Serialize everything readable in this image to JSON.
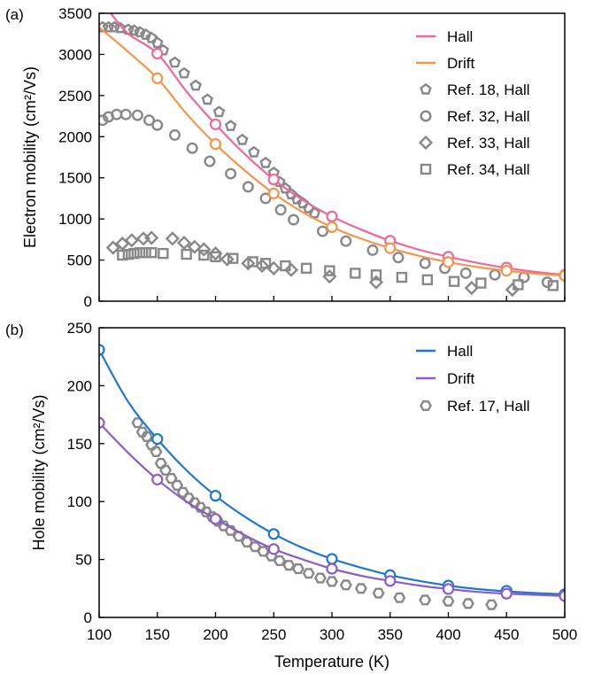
{
  "chart_data": [
    {
      "panel": "(a)",
      "type": "line",
      "ylabel": "Electron mobility (cm²/Vs)",
      "xlim": [
        100,
        500
      ],
      "ylim": [
        0,
        3500
      ],
      "xticks": [
        100,
        150,
        200,
        250,
        300,
        350,
        400,
        450,
        500
      ],
      "yticks": [
        0,
        500,
        1000,
        1500,
        2000,
        2500,
        3000,
        3500
      ],
      "grid": false,
      "legend_position": "top-right",
      "series": [
        {
          "name": "Hall",
          "kind": "curve+circles",
          "color": "#f0679a",
          "curve": [
            [
              110,
              3500
            ],
            [
              125,
              3250
            ],
            [
              150,
              3010
            ],
            [
              175,
              2550
            ],
            [
              200,
              2150
            ],
            [
              225,
              1790
            ],
            [
              250,
              1480
            ],
            [
              275,
              1230
            ],
            [
              300,
              1030
            ],
            [
              325,
              870
            ],
            [
              350,
              735
            ],
            [
              375,
              625
            ],
            [
              400,
              540
            ],
            [
              425,
              465
            ],
            [
              450,
              405
            ],
            [
              475,
              355
            ],
            [
              500,
              320
            ]
          ],
          "points": [
            [
              150,
              3010
            ],
            [
              200,
              2150
            ],
            [
              250,
              1480
            ],
            [
              300,
              1030
            ],
            [
              350,
              735
            ],
            [
              400,
              540
            ],
            [
              450,
              410
            ],
            [
              500,
              320
            ]
          ]
        },
        {
          "name": "Drift",
          "kind": "curve+circles",
          "color": "#f5954a",
          "curve": [
            [
              100,
              3330
            ],
            [
              125,
              3030
            ],
            [
              150,
              2710
            ],
            [
              175,
              2280
            ],
            [
              200,
              1910
            ],
            [
              225,
              1590
            ],
            [
              250,
              1310
            ],
            [
              275,
              1080
            ],
            [
              300,
              900
            ],
            [
              325,
              760
            ],
            [
              350,
              645
            ],
            [
              375,
              550
            ],
            [
              400,
              475
            ],
            [
              425,
              415
            ],
            [
              450,
              370
            ],
            [
              475,
              335
            ],
            [
              500,
              310
            ]
          ],
          "points": [
            [
              150,
              2710
            ],
            [
              200,
              1910
            ],
            [
              250,
              1310
            ],
            [
              300,
              900
            ],
            [
              350,
              645
            ],
            [
              400,
              475
            ],
            [
              450,
              370
            ],
            [
              500,
              310
            ]
          ]
        },
        {
          "name": "Ref. 18, Hall",
          "kind": "markers",
          "marker": "pentagon",
          "color": "#888888",
          "points": [
            [
              103,
              3330
            ],
            [
              108,
              3330
            ],
            [
              113,
              3330
            ],
            [
              118,
              3320
            ],
            [
              125,
              3300
            ],
            [
              130,
              3290
            ],
            [
              135,
              3270
            ],
            [
              140,
              3240
            ],
            [
              145,
              3200
            ],
            [
              150,
              3140
            ],
            [
              155,
              3050
            ],
            [
              165,
              2900
            ],
            [
              173,
              2770
            ],
            [
              183,
              2620
            ],
            [
              193,
              2450
            ],
            [
              203,
              2300
            ],
            [
              213,
              2130
            ],
            [
              223,
              1960
            ],
            [
              233,
              1810
            ],
            [
              243,
              1680
            ],
            [
              250,
              1560
            ],
            [
              255,
              1450
            ],
            [
              260,
              1370
            ],
            [
              265,
              1300
            ],
            [
              270,
              1240
            ],
            [
              275,
              1190
            ],
            [
              280,
              1130
            ],
            [
              285,
              1070
            ]
          ]
        },
        {
          "name": "Ref. 32, Hall",
          "kind": "markers",
          "marker": "circle",
          "color": "#888888",
          "points": [
            [
              103,
              2200
            ],
            [
              108,
              2240
            ],
            [
              115,
              2270
            ],
            [
              123,
              2270
            ],
            [
              133,
              2260
            ],
            [
              143,
              2200
            ],
            [
              150,
              2140
            ],
            [
              165,
              2020
            ],
            [
              180,
              1860
            ],
            [
              195,
              1700
            ],
            [
              213,
              1550
            ],
            [
              228,
              1390
            ],
            [
              243,
              1250
            ],
            [
              256,
              1110
            ],
            [
              267,
              990
            ],
            [
              292,
              850
            ],
            [
              312,
              730
            ],
            [
              335,
              620
            ],
            [
              357,
              530
            ],
            [
              380,
              460
            ],
            [
              397,
              400
            ],
            [
              415,
              340
            ],
            [
              440,
              320
            ],
            [
              465,
              290
            ],
            [
              485,
              230
            ]
          ]
        },
        {
          "name": "Ref. 33, Hall",
          "kind": "markers",
          "marker": "diamond",
          "color": "#888888",
          "points": [
            [
              112,
              650
            ],
            [
              120,
              700
            ],
            [
              128,
              740
            ],
            [
              138,
              760
            ],
            [
              145,
              770
            ],
            [
              163,
              760
            ],
            [
              173,
              710
            ],
            [
              182,
              660
            ],
            [
              190,
              630
            ],
            [
              200,
              580
            ],
            [
              210,
              510
            ],
            [
              228,
              460
            ],
            [
              240,
              430
            ],
            [
              250,
              400
            ],
            [
              265,
              380
            ],
            [
              298,
              300
            ],
            [
              338,
              230
            ],
            [
              420,
              160
            ],
            [
              455,
              140
            ]
          ]
        },
        {
          "name": "Ref. 34, Hall",
          "kind": "markers",
          "marker": "square",
          "color": "#888888",
          "points": [
            [
              120,
              560
            ],
            [
              125,
              570
            ],
            [
              130,
              580
            ],
            [
              135,
              590
            ],
            [
              140,
              590
            ],
            [
              145,
              590
            ],
            [
              155,
              580
            ],
            [
              175,
              570
            ],
            [
              190,
              560
            ],
            [
              200,
              540
            ],
            [
              215,
              520
            ],
            [
              232,
              480
            ],
            [
              243,
              460
            ],
            [
              260,
              430
            ],
            [
              278,
              400
            ],
            [
              298,
              370
            ],
            [
              320,
              340
            ],
            [
              338,
              320
            ],
            [
              360,
              290
            ],
            [
              382,
              260
            ],
            [
              405,
              240
            ],
            [
              428,
              220
            ],
            [
              460,
              200
            ],
            [
              490,
              190
            ]
          ]
        }
      ]
    },
    {
      "panel": "(b)",
      "type": "line",
      "xlabel": "Temperature (K)",
      "ylabel": "Hole mobility (cm²/Vs)",
      "xlim": [
        100,
        500
      ],
      "ylim": [
        0,
        250
      ],
      "xticks": [
        100,
        150,
        200,
        250,
        300,
        350,
        400,
        450,
        500
      ],
      "yticks": [
        0,
        50,
        100,
        150,
        200,
        250
      ],
      "grid": false,
      "legend_position": "top-right",
      "series": [
        {
          "name": "Hall",
          "kind": "curve+circles",
          "color": "#1f77d4",
          "curve": [
            [
              100,
              231
            ],
            [
              125,
              186
            ],
            [
              150,
              154
            ],
            [
              175,
              127
            ],
            [
              200,
              105
            ],
            [
              225,
              87
            ],
            [
              250,
              72
            ],
            [
              275,
              60
            ],
            [
              300,
              50.5
            ],
            [
              325,
              43
            ],
            [
              350,
              36.5
            ],
            [
              375,
              31.5
            ],
            [
              400,
              27.5
            ],
            [
              425,
              24.5
            ],
            [
              450,
              22.5
            ],
            [
              475,
              21
            ],
            [
              500,
              20
            ]
          ],
          "points": [
            [
              100,
              231
            ],
            [
              150,
              154
            ],
            [
              200,
              105
            ],
            [
              250,
              72
            ],
            [
              300,
              50.5
            ],
            [
              350,
              36.5
            ],
            [
              400,
              27.5
            ],
            [
              450,
              23
            ],
            [
              500,
              20
            ]
          ]
        },
        {
          "name": "Drift",
          "kind": "curve+circles",
          "color": "#8e5cc6",
          "curve": [
            [
              100,
              168
            ],
            [
              125,
              142
            ],
            [
              150,
              119
            ],
            [
              175,
              100
            ],
            [
              200,
              85
            ],
            [
              225,
              71
            ],
            [
              250,
              59
            ],
            [
              275,
              50
            ],
            [
              300,
              42
            ],
            [
              325,
              36
            ],
            [
              350,
              31.5
            ],
            [
              375,
              27.5
            ],
            [
              400,
              24.5
            ],
            [
              425,
              22
            ],
            [
              450,
              20.5
            ],
            [
              475,
              19.5
            ],
            [
              500,
              18.5
            ]
          ],
          "points": [
            [
              100,
              168
            ],
            [
              150,
              119
            ],
            [
              200,
              85
            ],
            [
              250,
              59
            ],
            [
              300,
              42
            ],
            [
              350,
              31.5
            ],
            [
              400,
              24.5
            ],
            [
              450,
              20.5
            ],
            [
              500,
              18.5
            ]
          ]
        },
        {
          "name": "Ref. 17, Hall",
          "kind": "markers",
          "marker": "hexagon",
          "color": "#888888",
          "points": [
            [
              133,
              168
            ],
            [
              137,
              160
            ],
            [
              141,
              156
            ],
            [
              145,
              149
            ],
            [
              149,
              143
            ],
            [
              153,
              133
            ],
            [
              157,
              127
            ],
            [
              162,
              120
            ],
            [
              167,
              114
            ],
            [
              172,
              108
            ],
            [
              177,
              103
            ],
            [
              182,
              99
            ],
            [
              187,
              95
            ],
            [
              192,
              91
            ],
            [
              197,
              87
            ],
            [
              202,
              83
            ],
            [
              207,
              79
            ],
            [
              213,
              75
            ],
            [
              220,
              70
            ],
            [
              227,
              65
            ],
            [
              234,
              61
            ],
            [
              241,
              57
            ],
            [
              248,
              53
            ],
            [
              255,
              49
            ],
            [
              263,
              45
            ],
            [
              271,
              42
            ],
            [
              280,
              38
            ],
            [
              290,
              34
            ],
            [
              300,
              31
            ],
            [
              312,
              28
            ],
            [
              325,
              25
            ],
            [
              340,
              21
            ],
            [
              358,
              17
            ],
            [
              380,
              15
            ],
            [
              400,
              14
            ],
            [
              417,
              12
            ],
            [
              437,
              11
            ]
          ]
        }
      ]
    }
  ]
}
